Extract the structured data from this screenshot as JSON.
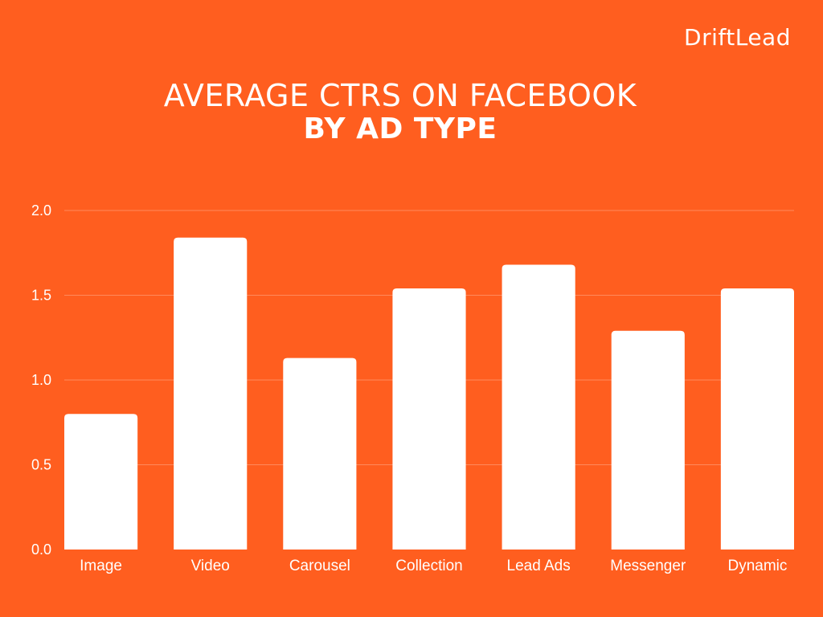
{
  "brand": {
    "logo_text": "DriftLead"
  },
  "colors": {
    "background": "#FF5E1F",
    "bar": "#FFFFFF",
    "grid": "#FF8A5C",
    "text": "#FFFFFF"
  },
  "chart_data": {
    "type": "bar",
    "title": "AVERAGE CTRS ON FACEBOOK",
    "subtitle": "BY AD TYPE",
    "xlabel": "",
    "ylabel": "",
    "categories": [
      "Image",
      "Video",
      "Carousel",
      "Collection",
      "Lead Ads",
      "Messenger",
      "Dynamic"
    ],
    "values": [
      0.8,
      1.84,
      1.13,
      1.54,
      1.68,
      1.29,
      1.54
    ],
    "ylim": [
      0,
      2.0
    ],
    "yticks": [
      "0.0",
      "0.5",
      "1.0",
      "1.5",
      "2.0"
    ],
    "grid": true,
    "legend": "none"
  }
}
